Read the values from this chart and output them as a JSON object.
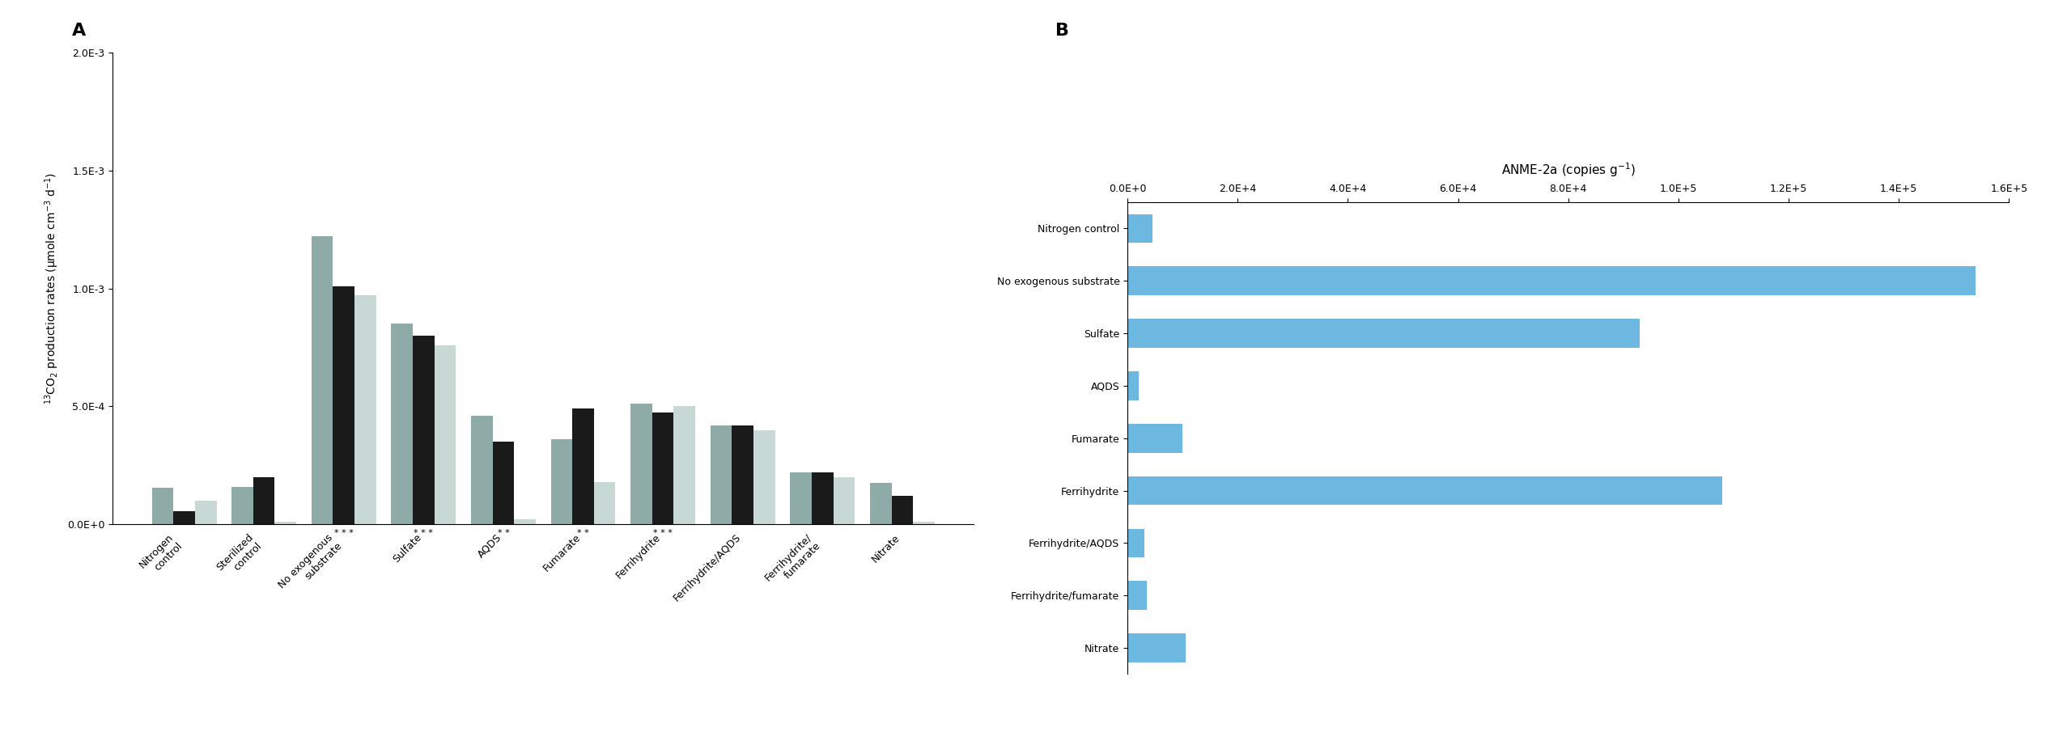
{
  "panel_a": {
    "categories": [
      "Nitrogen\ncontrol",
      "Sterilized\ncontrol",
      "No exogenous\nsubstrate",
      "Sulfate",
      "AQDS",
      "Fumarate",
      "Ferrihydrite",
      "Ferrihydrite/AQDS",
      "Ferrihydrite/\nfumarate",
      "Nitrate"
    ],
    "series1_color": "#8faba8",
    "series2_color": "#1a1a1a",
    "series3_color": "#c8d8d5",
    "series1": [
      0.000155,
      0.00016,
      0.00122,
      0.00085,
      0.00046,
      0.00036,
      0.00051,
      0.00042,
      0.00022,
      0.000175
    ],
    "series2": [
      5.5e-05,
      0.0002,
      0.00101,
      0.0008,
      0.00035,
      0.00049,
      0.000475,
      0.00042,
      0.00022,
      0.00012
    ],
    "series3": [
      0.0001,
      1e-05,
      0.00097,
      0.00076,
      2e-05,
      0.00018,
      0.0005,
      0.0004,
      0.0002,
      1e-05
    ],
    "ylabel": "$^{13}$CO$_2$ production rates (μmole cm$^{-3}$ d$^{-1}$)",
    "ylim": [
      0,
      0.002
    ],
    "yticks": [
      0.0,
      0.0005,
      0.001,
      0.0015,
      0.002
    ],
    "ytick_labels": [
      "0.0E+0",
      "5.0E-4",
      "1.0E-3",
      "1.5E-3",
      "2.0E-3"
    ],
    "star_indices": [
      2,
      3,
      4,
      5,
      6
    ],
    "star_counts": [
      3,
      3,
      2,
      2,
      3
    ],
    "panel_label": "A"
  },
  "panel_b": {
    "categories": [
      "Nitrogen control",
      "No exogenous substrate",
      "Sulfate",
      "AQDS",
      "Fumarate",
      "Ferrihydrite",
      "Ferrihydrite/AQDS",
      "Ferrihydrite/fumarate",
      "Nitrate"
    ],
    "values": [
      4500,
      154000,
      93000,
      2000,
      10000,
      108000,
      3000,
      3500,
      10500
    ],
    "bar_color": "#6cb8e0",
    "xlabel": "ANME-2a (copies g$^{-1}$)",
    "xlim": [
      0,
      160000
    ],
    "xticks": [
      0,
      20000,
      40000,
      60000,
      80000,
      100000,
      120000,
      140000,
      160000
    ],
    "xtick_labels": [
      "0.0E+0",
      "2.0E+4",
      "4.0E+4",
      "6.0E+4",
      "8.0E+4",
      "1.0E+5",
      "1.2E+5",
      "1.4E+5",
      "1.6E+5"
    ],
    "panel_label": "B"
  }
}
